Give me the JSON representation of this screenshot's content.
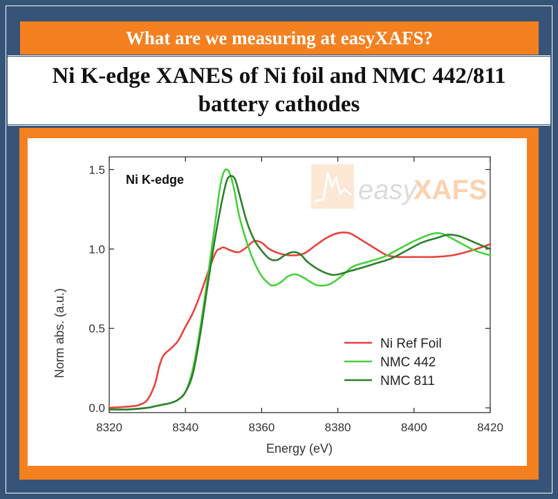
{
  "header": {
    "banner": "What are we measuring at easyXAFS?",
    "title": "Ni K-edge XANES of Ni foil and NMC 442/811 battery cathodes"
  },
  "logo": {
    "text_light": "easy",
    "text_bold": "XAFS",
    "color": "#f4801f"
  },
  "colors": {
    "frame": "#365478",
    "accent": "#f4801f"
  },
  "chart_data": {
    "type": "line",
    "annotation": "Ni K-edge",
    "xlabel": "Energy (eV)",
    "ylabel": "Norm abs. (a.u.)",
    "xlim": [
      8320,
      8420
    ],
    "ylim": [
      -0.03,
      1.58
    ],
    "xticks": [
      8320,
      8340,
      8360,
      8380,
      8400,
      8420
    ],
    "yticks": [
      0.0,
      0.5,
      1.0,
      1.5
    ],
    "xtick_labels": [
      "8320",
      "8340",
      "8360",
      "8380",
      "8400",
      "8420"
    ],
    "ytick_labels": [
      "0.0",
      "0.5",
      "1.0",
      "1.5"
    ],
    "legend_position": "bottom-right",
    "grid": false,
    "series": [
      {
        "name": "Ni Ref Foil",
        "color": "#e8413c",
        "x": [
          8320,
          8326,
          8328,
          8330,
          8332,
          8333,
          8334,
          8335,
          8336,
          8338,
          8340,
          8342,
          8344,
          8346,
          8348,
          8349,
          8350,
          8352,
          8354,
          8356,
          8358,
          8360,
          8362,
          8365,
          8368,
          8371,
          8374,
          8377,
          8380,
          8383,
          8386,
          8390,
          8393,
          8396,
          8400,
          8405,
          8410,
          8415,
          8420
        ],
        "y": [
          0.0,
          0.01,
          0.02,
          0.05,
          0.15,
          0.25,
          0.32,
          0.35,
          0.37,
          0.42,
          0.51,
          0.6,
          0.72,
          0.86,
          0.98,
          1.0,
          1.01,
          0.99,
          0.98,
          1.01,
          1.05,
          1.04,
          1.0,
          0.97,
          0.96,
          0.97,
          1.02,
          1.07,
          1.1,
          1.1,
          1.06,
          1.0,
          0.96,
          0.95,
          0.95,
          0.95,
          0.96,
          0.99,
          1.03
        ]
      },
      {
        "name": "NMC 442",
        "color": "#45d139",
        "x": [
          8320,
          8325,
          8330,
          8332,
          8334,
          8336,
          8338,
          8340,
          8342,
          8344,
          8346,
          8348,
          8349,
          8350,
          8351,
          8352,
          8353,
          8354,
          8356,
          8358,
          8360,
          8362,
          8363,
          8365,
          8367,
          8369,
          8371,
          8373,
          8375,
          8378,
          8381,
          8384,
          8388,
          8392,
          8396,
          8400,
          8404,
          8406,
          8408,
          8412,
          8416,
          8420
        ],
        "y": [
          -0.01,
          -0.01,
          0.0,
          0.01,
          0.02,
          0.03,
          0.05,
          0.1,
          0.25,
          0.52,
          0.85,
          1.2,
          1.38,
          1.48,
          1.5,
          1.45,
          1.35,
          1.22,
          1.05,
          0.92,
          0.83,
          0.78,
          0.77,
          0.79,
          0.83,
          0.84,
          0.82,
          0.79,
          0.77,
          0.78,
          0.83,
          0.89,
          0.92,
          0.95,
          1.0,
          1.05,
          1.09,
          1.1,
          1.09,
          1.04,
          0.99,
          0.96
        ]
      },
      {
        "name": "NMC 811",
        "color": "#2d7e2b",
        "x": [
          8320,
          8325,
          8330,
          8332,
          8334,
          8336,
          8338,
          8340,
          8342,
          8344,
          8346,
          8348,
          8350,
          8351,
          8352,
          8353,
          8354,
          8356,
          8358,
          8360,
          8362,
          8364,
          8366,
          8368,
          8370,
          8372,
          8375,
          8378,
          8380,
          8383,
          8386,
          8390,
          8394,
          8398,
          8402,
          8406,
          8409,
          8412,
          8416,
          8420
        ],
        "y": [
          -0.01,
          -0.01,
          0.0,
          0.01,
          0.02,
          0.03,
          0.05,
          0.1,
          0.22,
          0.48,
          0.8,
          1.1,
          1.35,
          1.44,
          1.46,
          1.44,
          1.36,
          1.18,
          1.06,
          0.99,
          0.94,
          0.93,
          0.96,
          0.98,
          0.97,
          0.92,
          0.87,
          0.84,
          0.84,
          0.86,
          0.88,
          0.91,
          0.94,
          0.99,
          1.04,
          1.07,
          1.09,
          1.08,
          1.04,
          1.0
        ]
      }
    ]
  }
}
